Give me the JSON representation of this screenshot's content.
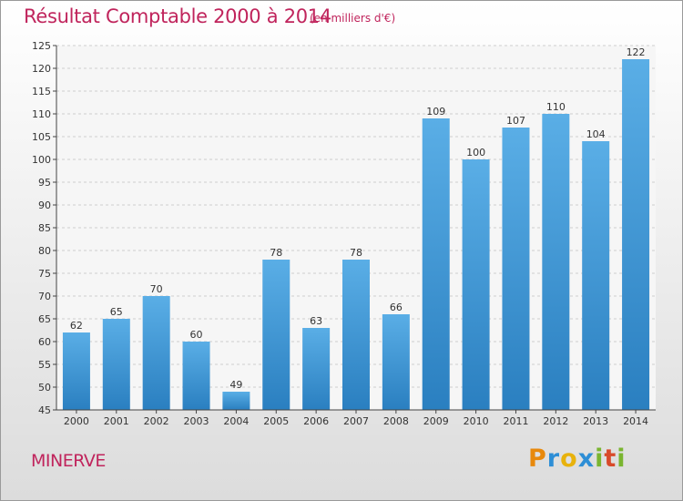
{
  "header": {
    "title": "Résultat Comptable 2000 à 2014",
    "subtitle": "(en milliers d'€)"
  },
  "footer": {
    "town": "MINERVE",
    "logo": [
      "P",
      "r",
      "o",
      "x",
      "i",
      "t",
      "i"
    ]
  },
  "colors": {
    "accent": "#c0245c",
    "bar_light": "#5aaee6",
    "bar_dark": "#2a7fc0"
  },
  "chart_data": {
    "type": "bar",
    "title": "Résultat Comptable 2000 à 2014",
    "xlabel": "",
    "ylabel": "",
    "categories": [
      "2000",
      "2001",
      "2002",
      "2003",
      "2004",
      "2005",
      "2006",
      "2007",
      "2008",
      "2009",
      "2010",
      "2011",
      "2012",
      "2013",
      "2014"
    ],
    "values": [
      62,
      65,
      70,
      60,
      49,
      78,
      63,
      78,
      66,
      109,
      100,
      107,
      110,
      104,
      122
    ],
    "ylim": [
      45,
      125
    ],
    "yticks": [
      45,
      50,
      55,
      60,
      65,
      70,
      75,
      80,
      85,
      90,
      95,
      100,
      105,
      110,
      115,
      120,
      125
    ],
    "grid": true,
    "data_labels": true
  }
}
